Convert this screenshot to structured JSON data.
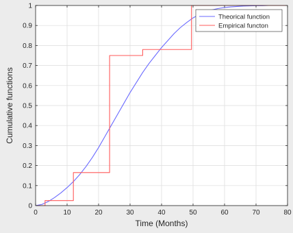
{
  "chart_data": {
    "type": "line",
    "xlabel": "Time (Months)",
    "ylabel": "Cumulative functions",
    "xlim": [
      0,
      80
    ],
    "ylim": [
      0,
      1
    ],
    "xticks": [
      0,
      10,
      20,
      30,
      40,
      50,
      60,
      70,
      80
    ],
    "yticks": [
      0,
      0.1,
      0.2,
      0.3,
      0.4,
      0.5,
      0.6,
      0.7,
      0.8,
      0.9,
      1
    ],
    "grid": true,
    "legend_position": "top-right",
    "series": [
      {
        "name": "Theorical function",
        "color": "#6a6aff",
        "style": "smooth",
        "x": [
          0,
          2,
          4,
          6,
          8,
          10,
          12,
          14,
          16,
          18,
          20,
          22,
          24,
          26,
          28,
          30,
          32,
          34,
          36,
          38,
          40,
          42,
          44,
          46,
          48,
          50,
          52,
          54,
          56,
          58,
          60,
          62,
          64,
          66,
          68,
          70,
          72,
          74,
          76,
          78,
          80
        ],
        "y": [
          0,
          0.006,
          0.02,
          0.04,
          0.063,
          0.09,
          0.12,
          0.155,
          0.195,
          0.24,
          0.29,
          0.345,
          0.4,
          0.455,
          0.51,
          0.565,
          0.615,
          0.665,
          0.71,
          0.75,
          0.79,
          0.825,
          0.86,
          0.89,
          0.915,
          0.938,
          0.955,
          0.968,
          0.978,
          0.985,
          0.99,
          0.993,
          0.995,
          0.997,
          0.998,
          0.999,
          0.999,
          1,
          1,
          1,
          1
        ]
      },
      {
        "name": "Empirical functon",
        "color": "#ff5a5a",
        "style": "step",
        "x": [
          0,
          3,
          12,
          23.5,
          34,
          35.5,
          49.5,
          80
        ],
        "y": [
          0,
          0.025,
          0.165,
          0.75,
          0.78,
          0.78,
          1,
          1
        ]
      }
    ]
  }
}
